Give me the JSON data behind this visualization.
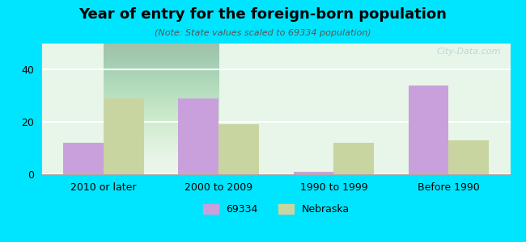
{
  "title": "Year of entry for the foreign-born population",
  "subtitle": "(Note: State values scaled to 69334 population)",
  "categories": [
    "2010 or later",
    "2000 to 2009",
    "1990 to 1999",
    "Before 1990"
  ],
  "values_city": [
    12,
    29,
    1,
    34
  ],
  "values_state": [
    29,
    19,
    12,
    13
  ],
  "bar_color_city": "#c9a0dc",
  "bar_color_state": "#c8d5a0",
  "background_outer": "#00e5ff",
  "background_chart": "#e8f5e9",
  "background_chart_top": "#ffffff",
  "ylim": [
    0,
    50
  ],
  "yticks": [
    0,
    20,
    40
  ],
  "legend_labels": [
    "69334",
    "Nebraska"
  ],
  "bar_width": 0.35,
  "watermark": "City-Data.com"
}
